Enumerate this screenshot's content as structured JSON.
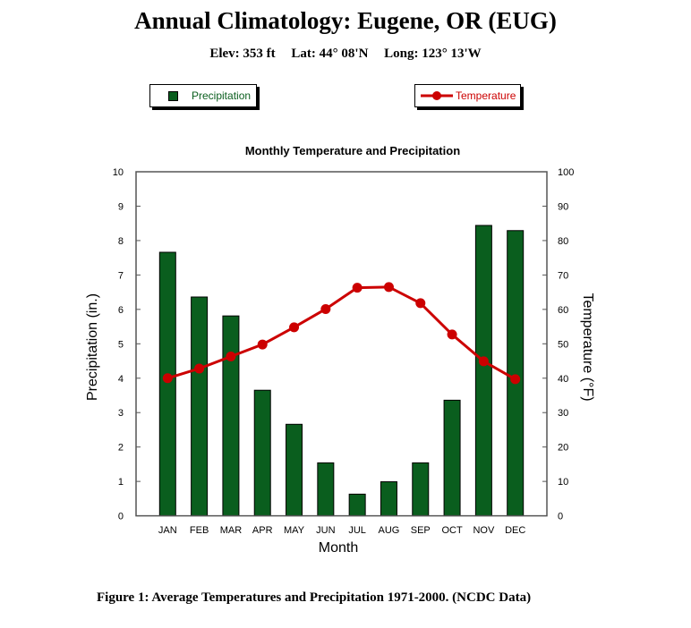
{
  "header": {
    "title": "Annual Climatology: Eugene, OR (EUG)",
    "elev": "Elev: 353 ft",
    "lat": "Lat: 44° 08'N",
    "long": "Long: 123° 13'W"
  },
  "legend": {
    "precip": "Precipitation",
    "temp": "Temperature"
  },
  "caption": "Figure 1: Average Temperatures and Precipitation 1971-2000. (NCDC Data)",
  "colors": {
    "precip": "#0a5e1e",
    "temp": "#cc0000"
  },
  "chart_data": {
    "type": "bar+line",
    "title": "Monthly Temperature and Precipitation",
    "xlabel": "Month",
    "ylabel": "Precipitation (in.)",
    "y2label": "Temperature (°F)",
    "ylim": [
      0,
      10
    ],
    "y2lim": [
      0,
      100
    ],
    "yticks": [
      "0",
      "1",
      "2",
      "3",
      "4",
      "5",
      "6",
      "7",
      "8",
      "9",
      "10"
    ],
    "y2ticks": [
      "0",
      "10",
      "20",
      "30",
      "40",
      "50",
      "60",
      "70",
      "80",
      "90",
      "100"
    ],
    "grid": false,
    "legend_placement": "top",
    "categories": [
      "JAN",
      "FEB",
      "MAR",
      "APR",
      "MAY",
      "JUN",
      "JUL",
      "AUG",
      "SEP",
      "OCT",
      "NOV",
      "DEC"
    ],
    "series": [
      {
        "name": "Precipitation",
        "type": "bar",
        "axis": "left",
        "values": [
          7.66,
          6.36,
          5.81,
          3.65,
          2.66,
          1.54,
          0.63,
          0.99,
          1.54,
          3.36,
          8.44,
          8.29
        ]
      },
      {
        "name": "Temperature",
        "type": "line",
        "axis": "right",
        "values": [
          40.0,
          42.8,
          46.3,
          49.8,
          54.8,
          60.1,
          66.3,
          66.5,
          61.8,
          52.7,
          44.9,
          39.7
        ]
      }
    ]
  }
}
